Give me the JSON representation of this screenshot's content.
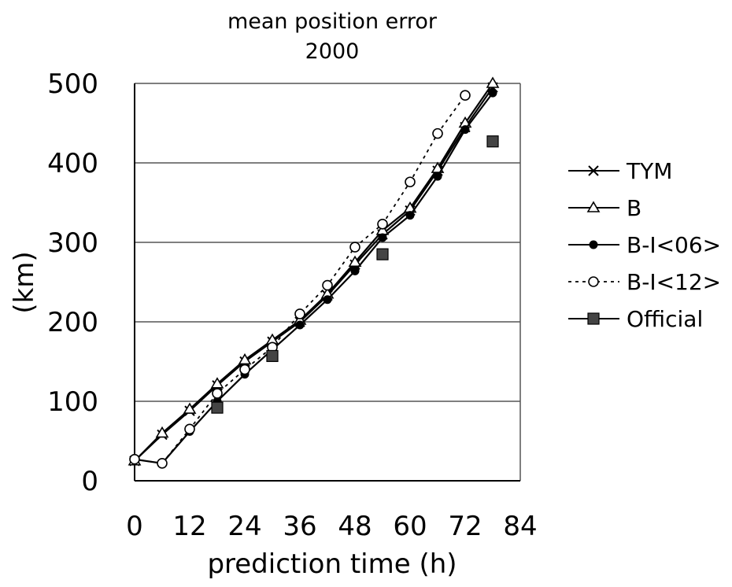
{
  "chart_data": {
    "type": "line",
    "title": "mean position error",
    "subtitle": "2000",
    "xlabel": "prediction time (h)",
    "ylabel": "(km)",
    "xlim": [
      0,
      84
    ],
    "ylim": [
      0,
      500
    ],
    "xticks": [
      0,
      12,
      24,
      36,
      48,
      60,
      72,
      84
    ],
    "yticks": [
      0,
      100,
      200,
      300,
      400,
      500
    ],
    "grid": "horizontal",
    "legend_position": "right",
    "series": [
      {
        "name": "TYM",
        "marker": "x",
        "dash": "solid",
        "x": [
          0,
          6,
          12,
          18,
          24,
          30,
          36,
          42,
          48,
          54,
          60,
          66,
          72,
          78
        ],
        "y": [
          25,
          58,
          88,
          120,
          150,
          175,
          200,
          233,
          272,
          310,
          340,
          390,
          445,
          495
        ]
      },
      {
        "name": "B",
        "marker": "triangle",
        "dash": "solid",
        "x": [
          0,
          6,
          12,
          18,
          24,
          30,
          36,
          42,
          48,
          54,
          60,
          66,
          72,
          78
        ],
        "y": [
          25,
          60,
          90,
          122,
          152,
          177,
          202,
          235,
          275,
          315,
          343,
          393,
          450,
          500
        ]
      },
      {
        "name": "B-I<06>",
        "marker": "dot",
        "dash": "solid",
        "x": [
          0,
          6,
          12,
          18,
          24,
          30,
          36,
          42,
          48,
          54,
          60,
          66,
          72,
          78
        ],
        "y": [
          27,
          22,
          62,
          100,
          134,
          165,
          196,
          228,
          264,
          306,
          334,
          383,
          442,
          488
        ]
      },
      {
        "name": "B-I<12>",
        "marker": "circle",
        "dash": "dotted",
        "x": [
          0,
          6,
          12,
          18,
          24,
          30,
          36,
          42,
          48,
          54,
          60,
          66,
          72
        ],
        "y": [
          27,
          22,
          65,
          110,
          140,
          168,
          210,
          246,
          294,
          323,
          376,
          437,
          485
        ]
      },
      {
        "name": "Official",
        "marker": "square",
        "dash": "none",
        "x": [
          18,
          30,
          54,
          78
        ],
        "y": [
          92,
          157,
          285,
          427
        ]
      }
    ]
  }
}
